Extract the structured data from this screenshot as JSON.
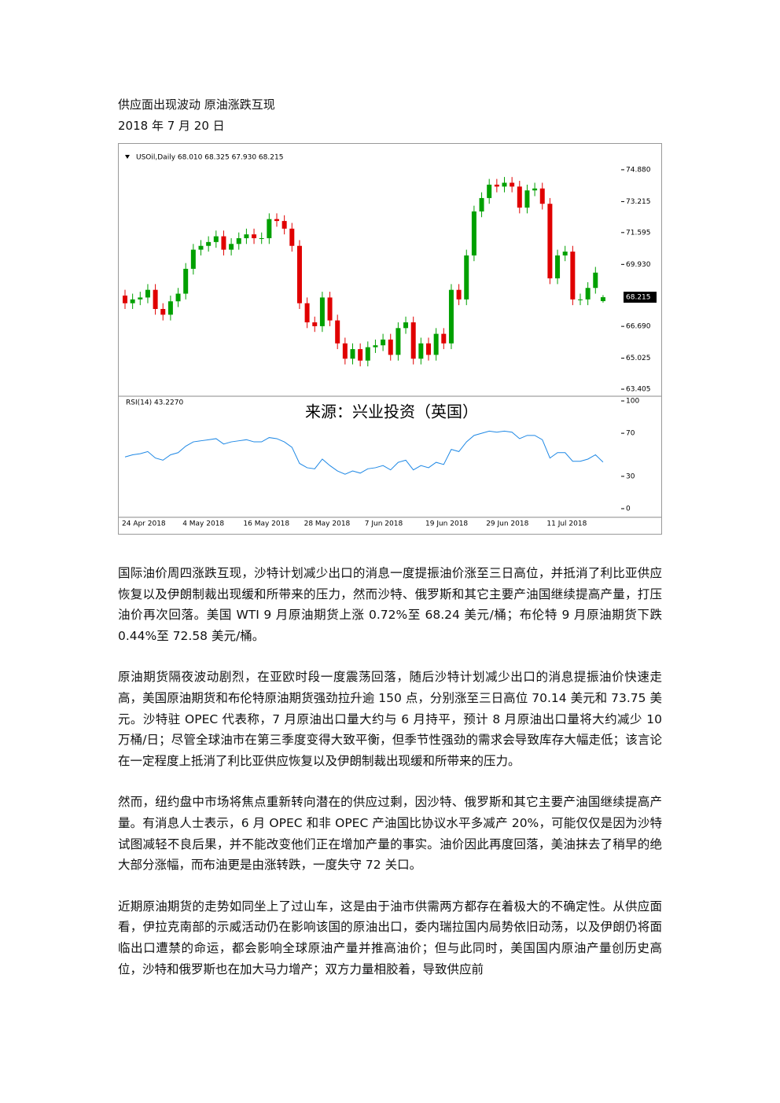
{
  "header": {
    "title": "供应面出现波动  原油涨跌互现",
    "date": "2018 年 7 月 20 日"
  },
  "chart_data": {
    "type": "candlestick",
    "legend_text": "USOil,Daily  68.010 68.325 67.930 68.215",
    "watermark": "来源：兴业投资（英国）",
    "up_color": "#00a000",
    "down_color": "#e00000",
    "ylim": [
      63.16,
      76.11
    ],
    "yticks": [
      {
        "value": 74.88,
        "label": "74.880"
      },
      73.215,
      71.595,
      {
        "value": 69.93,
        "label": "69.930"
      },
      {
        "value": 66.69,
        "label": "66.690"
      },
      65.025,
      63.405
    ],
    "x_labels": [
      "24 Apr 2018",
      "4 May 2018",
      "16 May 2018",
      "28 May 2018",
      "7 Jun 2018",
      "19 Jun 2018",
      "29 Jun 2018",
      "11 Jul 2018"
    ],
    "candles": [
      [
        68.3,
        68.6,
        67.6,
        67.9
      ],
      [
        67.9,
        68.4,
        67.6,
        68.1
      ],
      [
        68.1,
        68.5,
        67.8,
        68.2
      ],
      [
        68.2,
        68.9,
        67.9,
        68.6
      ],
      [
        68.6,
        68.9,
        67.3,
        67.6
      ],
      [
        67.6,
        67.9,
        67.0,
        67.3
      ],
      [
        67.3,
        68.3,
        67.0,
        68.0
      ],
      [
        68.0,
        68.7,
        67.7,
        68.4
      ],
      [
        68.4,
        70.0,
        68.1,
        69.7
      ],
      [
        69.7,
        71.0,
        69.4,
        70.7
      ],
      [
        70.7,
        71.2,
        70.4,
        70.9
      ],
      [
        70.9,
        71.4,
        70.6,
        71.1
      ],
      [
        71.1,
        71.7,
        70.8,
        71.4
      ],
      [
        71.4,
        71.7,
        70.4,
        70.7
      ],
      [
        70.7,
        71.3,
        70.4,
        71.0
      ],
      [
        71.0,
        71.6,
        70.7,
        71.3
      ],
      [
        71.3,
        71.8,
        71.0,
        71.5
      ],
      [
        71.5,
        71.8,
        71.0,
        71.3
      ],
      [
        71.3,
        71.6,
        71.0,
        71.3
      ],
      [
        71.3,
        72.6,
        71.0,
        72.3
      ],
      [
        72.3,
        72.6,
        71.9,
        72.2
      ],
      [
        72.2,
        72.5,
        71.5,
        71.8
      ],
      [
        71.8,
        72.1,
        70.6,
        70.9
      ],
      [
        70.9,
        71.2,
        67.6,
        67.9
      ],
      [
        67.9,
        68.2,
        66.6,
        66.9
      ],
      [
        66.9,
        67.2,
        66.4,
        66.7
      ],
      [
        66.7,
        68.5,
        66.4,
        68.2
      ],
      [
        68.2,
        68.5,
        66.7,
        67.0
      ],
      [
        67.0,
        67.3,
        65.5,
        65.8
      ],
      [
        65.8,
        66.1,
        64.7,
        65.0
      ],
      [
        65.0,
        65.8,
        64.7,
        65.5
      ],
      [
        65.5,
        65.8,
        64.6,
        64.9
      ],
      [
        64.9,
        65.9,
        64.6,
        65.6
      ],
      [
        65.6,
        66.0,
        65.3,
        65.7
      ],
      [
        65.7,
        66.3,
        65.4,
        66.0
      ],
      [
        66.0,
        66.3,
        64.9,
        65.2
      ],
      [
        65.2,
        66.9,
        64.9,
        66.6
      ],
      [
        66.6,
        67.2,
        66.3,
        66.9
      ],
      [
        66.9,
        67.2,
        64.7,
        65.0
      ],
      [
        65.0,
        66.1,
        64.7,
        65.8
      ],
      [
        65.8,
        66.1,
        64.9,
        65.2
      ],
      [
        65.2,
        66.6,
        64.9,
        66.3
      ],
      [
        66.3,
        66.6,
        65.5,
        65.8
      ],
      [
        65.8,
        68.9,
        65.5,
        68.6
      ],
      [
        68.6,
        68.9,
        67.8,
        68.1
      ],
      [
        68.1,
        70.7,
        67.8,
        70.4
      ],
      [
        70.4,
        73.0,
        70.1,
        72.7
      ],
      [
        72.7,
        73.7,
        72.4,
        73.4
      ],
      [
        73.4,
        74.4,
        73.1,
        74.1
      ],
      [
        74.1,
        74.4,
        73.7,
        74.0
      ],
      [
        74.0,
        74.5,
        73.7,
        74.2
      ],
      [
        74.2,
        74.5,
        73.7,
        74.0
      ],
      [
        74.0,
        74.3,
        72.6,
        72.9
      ],
      [
        72.9,
        74.1,
        72.6,
        73.8
      ],
      [
        73.8,
        74.2,
        73.5,
        73.9
      ],
      [
        73.9,
        74.2,
        72.8,
        73.1
      ],
      [
        73.1,
        73.4,
        68.9,
        69.2
      ],
      [
        69.2,
        70.7,
        68.9,
        70.4
      ],
      [
        70.4,
        70.9,
        70.1,
        70.6
      ],
      [
        70.6,
        70.9,
        67.8,
        68.1
      ],
      [
        68.1,
        68.4,
        67.8,
        68.1
      ],
      [
        68.1,
        69.0,
        67.8,
        68.7
      ],
      [
        68.7,
        69.8,
        68.4,
        69.5
      ],
      [
        68.01,
        68.325,
        67.93,
        68.215
      ]
    ],
    "rsi_label": "RSI(14) 43.2270",
    "rsi_ylim": [
      0,
      100
    ],
    "rsi_yticks": [
      100,
      70,
      30,
      0
    ],
    "rsi_color": "#1e88e5",
    "rsi": [
      48,
      50,
      51,
      53,
      47,
      45,
      50,
      52,
      58,
      62,
      63,
      64,
      65,
      60,
      62,
      63,
      64,
      62,
      62,
      66,
      65,
      62,
      57,
      42,
      38,
      37,
      46,
      40,
      35,
      32,
      35,
      33,
      37,
      38,
      40,
      36,
      43,
      45,
      36,
      40,
      38,
      43,
      41,
      55,
      53,
      62,
      68,
      70,
      72,
      71,
      72,
      71,
      65,
      68,
      68,
      64,
      47,
      52,
      52,
      44,
      44,
      46,
      50,
      43.227
    ]
  },
  "paragraphs": [
    "国际油价周四涨跌互现，沙特计划减少出口的消息一度提振油价涨至三日高位，并抵消了利比亚供应恢复以及伊朗制裁出现缓和所带来的压力，然而沙特、俄罗斯和其它主要产油国继续提高产量，打压油价再次回落。美国 WTI 9 月原油期货上涨 0.72%至 68.24 美元/桶；布伦特 9 月原油期货下跌 0.44%至 72.58 美元/桶。",
    "原油期货隔夜波动剧烈，在亚欧时段一度震荡回落，随后沙特计划减少出口的消息提振油价快速走高，美国原油期货和布伦特原油期货强劲拉升逾 150 点，分别涨至三日高位 70.14 美元和 73.75 美元。沙特驻 OPEC 代表称，7 月原油出口量大约与 6 月持平，预计 8 月原油出口量将大约减少 10 万桶/日；尽管全球油市在第三季度变得大致平衡，但季节性强劲的需求会导致库存大幅走低；该言论在一定程度上抵消了利比亚供应恢复以及伊朗制裁出现缓和所带来的压力。",
    "然而，纽约盘中市场将焦点重新转向潜在的供应过剩，因沙特、俄罗斯和其它主要产油国继续提高产量。有消息人士表示，6 月 OPEC 和非 OPEC 产油国比协议水平多减产 20%，可能仅仅是因为沙特试图减轻不良后果，并不能改变他们正在增加产量的事实。油价因此再度回落，美油抹去了稍早的绝大部分涨幅，而布油更是由涨转跌，一度失守 72 关口。",
    "近期原油期货的走势如同坐上了过山车，这是由于油市供需两方都存在着极大的不确定性。从供应面看，伊拉克南部的示威活动仍在影响该国的原油出口，委内瑞拉国内局势依旧动荡，以及伊朗仍将面临出口遭禁的命运，都会影响全球原油产量并推高油价；但与此同时，美国国内原油产量创历史高位，沙特和俄罗斯也在加大马力增产；双方力量相胶着，导致供应前"
  ]
}
